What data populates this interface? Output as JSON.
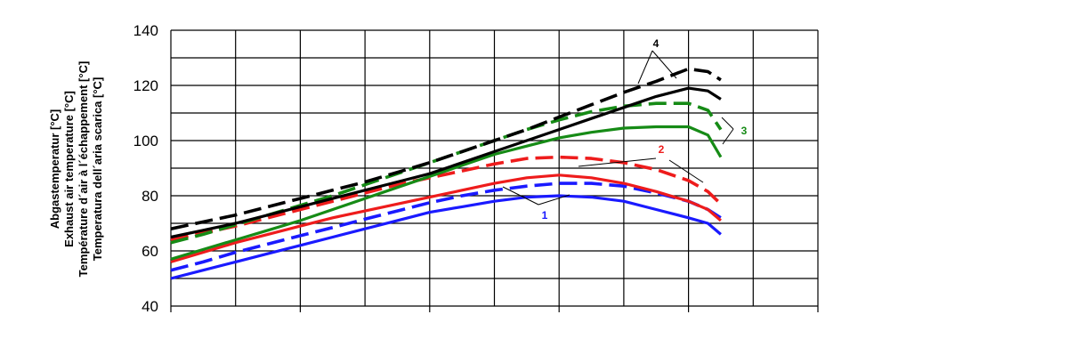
{
  "chart_data": {
    "type": "line",
    "ylim": [
      40,
      140
    ],
    "yticks": [
      "40",
      "60",
      "80",
      "100",
      "120",
      "140"
    ],
    "ylabel_lines": [
      "Abgastemperatur [°C]",
      "Exhaust air temperature [°C]",
      "Température d´air à l´échappement [°C]",
      "Temperatura dell´aria scarica [°C]"
    ],
    "grid": true,
    "x_grid_divisions": 10,
    "xlim": [
      0,
      10
    ],
    "series": [
      {
        "id": "1-solid",
        "color": "#1a1aff",
        "dashed": false,
        "x": [
          0,
          0.5,
          1,
          1.5,
          2,
          2.5,
          3,
          3.5,
          4,
          4.5,
          5,
          5.5,
          6,
          6.5,
          7,
          7.5,
          8,
          8.3,
          8.5
        ],
        "y": [
          50,
          53,
          56,
          59,
          62,
          65,
          68,
          71,
          74,
          76,
          78,
          79.5,
          80,
          79.5,
          78,
          75,
          72,
          70,
          66
        ]
      },
      {
        "id": "1-dashed",
        "color": "#1a1aff",
        "dashed": true,
        "x": [
          0,
          0.5,
          1,
          1.5,
          2,
          2.5,
          3,
          3.5,
          4,
          4.5,
          5,
          5.5,
          6,
          6.5,
          7,
          7.5,
          8,
          8.3,
          8.5
        ],
        "y": [
          53,
          56,
          59.5,
          62.5,
          65.5,
          68.5,
          71.5,
          74.5,
          77.5,
          80,
          82,
          83.5,
          84.5,
          84.5,
          83.5,
          81,
          78,
          75,
          72
        ]
      },
      {
        "id": "2-solid",
        "color": "#ee1c1c",
        "dashed": false,
        "x": [
          0,
          0.5,
          1,
          1.5,
          2,
          2.5,
          3,
          3.5,
          4,
          4.5,
          5,
          5.5,
          6,
          6.5,
          7,
          7.5,
          8,
          8.3,
          8.5
        ],
        "y": [
          56,
          59.5,
          63,
          66,
          69,
          72,
          74.5,
          77,
          79.5,
          82,
          84.5,
          86.5,
          87.5,
          86.5,
          84.5,
          81.5,
          78,
          75,
          71
        ]
      },
      {
        "id": "2-dashed",
        "color": "#ee1c1c",
        "dashed": true,
        "x": [
          0,
          0.5,
          1,
          1.5,
          2,
          2.5,
          3,
          3.5,
          4,
          4.5,
          5,
          5.5,
          6,
          6.5,
          7,
          7.5,
          8,
          8.3,
          8.5
        ],
        "y": [
          64,
          66.5,
          69,
          72,
          75,
          78,
          81,
          84,
          86.5,
          89,
          91.5,
          93.5,
          94,
          93.5,
          92,
          89.5,
          85.5,
          81.5,
          77
        ]
      },
      {
        "id": "3-solid",
        "color": "#168b16",
        "dashed": false,
        "x": [
          0,
          0.5,
          1,
          1.5,
          2,
          2.5,
          3,
          3.5,
          4,
          4.5,
          5,
          5.5,
          6,
          6.5,
          7,
          7.5,
          8,
          8.3,
          8.5
        ],
        "y": [
          57,
          60.5,
          64,
          67.5,
          71,
          75,
          79,
          83,
          87,
          91,
          95,
          98,
          101,
          103,
          104.5,
          105,
          105,
          102,
          94
        ]
      },
      {
        "id": "3-dashed",
        "color": "#168b16",
        "dashed": true,
        "x": [
          0,
          0.5,
          1,
          1.5,
          2,
          2.5,
          3,
          3.5,
          4,
          4.5,
          5,
          5.5,
          6,
          6.5,
          7,
          7.5,
          8,
          8.3,
          8.5
        ],
        "y": [
          63,
          66,
          69.5,
          73,
          76.5,
          80,
          84,
          88,
          92,
          96,
          100,
          104,
          107.5,
          110.5,
          112.5,
          113.5,
          113.5,
          111,
          104
        ]
      },
      {
        "id": "4-solid",
        "color": "#000000",
        "dashed": false,
        "x": [
          0,
          0.5,
          1,
          1.5,
          2,
          2.5,
          3,
          3.5,
          4,
          4.5,
          5,
          5.5,
          6,
          6.5,
          7,
          7.5,
          8,
          8.3,
          8.5
        ],
        "y": [
          65,
          67.5,
          70,
          73,
          76,
          79,
          82,
          85,
          88,
          92,
          96,
          100,
          104,
          108,
          112,
          116,
          119,
          118,
          115
        ]
      },
      {
        "id": "4-dashed",
        "color": "#000000",
        "dashed": true,
        "x": [
          0,
          0.5,
          1,
          1.5,
          2,
          2.5,
          3,
          3.5,
          4,
          4.5,
          5,
          5.5,
          6,
          6.5,
          7,
          7.5,
          8,
          8.3,
          8.5
        ],
        "y": [
          68,
          70.5,
          73,
          76,
          79,
          82,
          85,
          88.5,
          92,
          96,
          100,
          104,
          108.5,
          113,
          117.5,
          121.5,
          126,
          125,
          122
        ]
      }
    ],
    "annotations": [
      {
        "label": "1",
        "color": "#1a1aff"
      },
      {
        "label": "2",
        "color": "#ee1c1c"
      },
      {
        "label": "3",
        "color": "#168b16"
      },
      {
        "label": "4",
        "color": "#000000"
      }
    ]
  }
}
